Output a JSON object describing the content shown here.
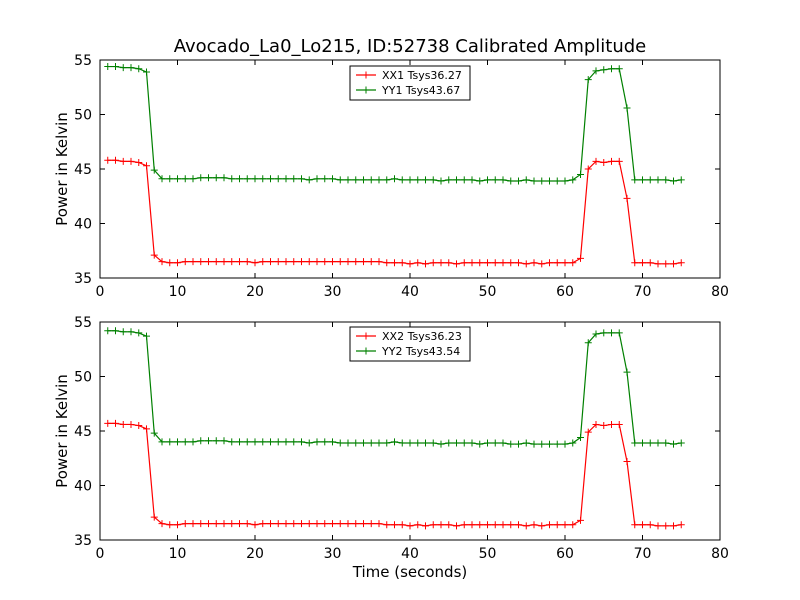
{
  "figure": {
    "title": "Avocado_La0_Lo215, ID:52738 Calibrated Amplitude"
  },
  "chart_data": [
    {
      "type": "line",
      "xlabel": "",
      "ylabel": "Power in Kelvin",
      "xlim": [
        0,
        80
      ],
      "ylim": [
        35,
        55
      ],
      "xticks": [
        0,
        10,
        20,
        30,
        40,
        50,
        60,
        70,
        80
      ],
      "yticks": [
        35,
        40,
        45,
        50,
        55
      ],
      "grid": false,
      "legend": "top-center",
      "series": [
        {
          "name": "XX1 Tsys36.27",
          "color": "#ff0000",
          "x": [
            1,
            2,
            3,
            4,
            5,
            6,
            7,
            8,
            9,
            10,
            11,
            12,
            13,
            14,
            15,
            16,
            17,
            18,
            19,
            20,
            21,
            22,
            23,
            24,
            25,
            26,
            27,
            28,
            29,
            30,
            31,
            32,
            33,
            34,
            35,
            36,
            37,
            38,
            39,
            40,
            41,
            42,
            43,
            44,
            45,
            46,
            47,
            48,
            49,
            50,
            51,
            52,
            53,
            54,
            55,
            56,
            57,
            58,
            59,
            60,
            61,
            62,
            63,
            64,
            65,
            66,
            67,
            68,
            69,
            70,
            71,
            72,
            73,
            74,
            75
          ],
          "values": [
            45.8,
            45.8,
            45.7,
            45.7,
            45.6,
            45.3,
            37.1,
            36.5,
            36.4,
            36.4,
            36.5,
            36.5,
            36.5,
            36.5,
            36.5,
            36.5,
            36.5,
            36.5,
            36.5,
            36.4,
            36.5,
            36.5,
            36.5,
            36.5,
            36.5,
            36.5,
            36.5,
            36.5,
            36.5,
            36.5,
            36.5,
            36.5,
            36.5,
            36.5,
            36.5,
            36.5,
            36.4,
            36.4,
            36.4,
            36.3,
            36.4,
            36.3,
            36.4,
            36.4,
            36.4,
            36.3,
            36.4,
            36.4,
            36.4,
            36.4,
            36.4,
            36.4,
            36.4,
            36.4,
            36.3,
            36.4,
            36.3,
            36.4,
            36.4,
            36.4,
            36.4,
            36.8,
            45.0,
            45.7,
            45.6,
            45.7,
            45.7,
            42.3,
            36.4,
            36.4,
            36.4,
            36.3,
            36.3,
            36.3,
            36.4
          ]
        },
        {
          "name": "YY1 Tsys43.67",
          "color": "#008000",
          "x": [
            1,
            2,
            3,
            4,
            5,
            6,
            7,
            8,
            9,
            10,
            11,
            12,
            13,
            14,
            15,
            16,
            17,
            18,
            19,
            20,
            21,
            22,
            23,
            24,
            25,
            26,
            27,
            28,
            29,
            30,
            31,
            32,
            33,
            34,
            35,
            36,
            37,
            38,
            39,
            40,
            41,
            42,
            43,
            44,
            45,
            46,
            47,
            48,
            49,
            50,
            51,
            52,
            53,
            54,
            55,
            56,
            57,
            58,
            59,
            60,
            61,
            62,
            63,
            64,
            65,
            66,
            67,
            68,
            69,
            70,
            71,
            72,
            73,
            74,
            75
          ],
          "values": [
            54.4,
            54.4,
            54.3,
            54.3,
            54.2,
            53.9,
            44.9,
            44.1,
            44.1,
            44.1,
            44.1,
            44.1,
            44.2,
            44.2,
            44.2,
            44.2,
            44.1,
            44.1,
            44.1,
            44.1,
            44.1,
            44.1,
            44.1,
            44.1,
            44.1,
            44.1,
            44.0,
            44.1,
            44.1,
            44.1,
            44.0,
            44.0,
            44.0,
            44.0,
            44.0,
            44.0,
            44.0,
            44.1,
            44.0,
            44.0,
            44.0,
            44.0,
            44.0,
            43.9,
            44.0,
            44.0,
            44.0,
            44.0,
            43.9,
            44.0,
            44.0,
            44.0,
            43.9,
            43.9,
            44.0,
            43.9,
            43.9,
            43.9,
            43.9,
            43.9,
            44.0,
            44.5,
            53.2,
            54.0,
            54.1,
            54.2,
            54.2,
            50.6,
            44.0,
            44.0,
            44.0,
            44.0,
            44.0,
            43.9,
            44.0
          ]
        }
      ]
    },
    {
      "type": "line",
      "xlabel": "Time (seconds)",
      "ylabel": "Power in Kelvin",
      "xlim": [
        0,
        80
      ],
      "ylim": [
        35,
        55
      ],
      "xticks": [
        0,
        10,
        20,
        30,
        40,
        50,
        60,
        70,
        80
      ],
      "yticks": [
        35,
        40,
        45,
        50,
        55
      ],
      "grid": false,
      "legend": "top-center",
      "series": [
        {
          "name": "XX2 Tsys36.23",
          "color": "#ff0000",
          "x": [
            1,
            2,
            3,
            4,
            5,
            6,
            7,
            8,
            9,
            10,
            11,
            12,
            13,
            14,
            15,
            16,
            17,
            18,
            19,
            20,
            21,
            22,
            23,
            24,
            25,
            26,
            27,
            28,
            29,
            30,
            31,
            32,
            33,
            34,
            35,
            36,
            37,
            38,
            39,
            40,
            41,
            42,
            43,
            44,
            45,
            46,
            47,
            48,
            49,
            50,
            51,
            52,
            53,
            54,
            55,
            56,
            57,
            58,
            59,
            60,
            61,
            62,
            63,
            64,
            65,
            66,
            67,
            68,
            69,
            70,
            71,
            72,
            73,
            74,
            75
          ],
          "values": [
            45.7,
            45.7,
            45.6,
            45.6,
            45.5,
            45.2,
            37.1,
            36.5,
            36.4,
            36.4,
            36.5,
            36.5,
            36.5,
            36.5,
            36.5,
            36.5,
            36.5,
            36.5,
            36.5,
            36.4,
            36.5,
            36.5,
            36.5,
            36.5,
            36.5,
            36.5,
            36.5,
            36.5,
            36.5,
            36.5,
            36.5,
            36.5,
            36.5,
            36.5,
            36.5,
            36.5,
            36.4,
            36.4,
            36.4,
            36.3,
            36.4,
            36.3,
            36.4,
            36.4,
            36.4,
            36.3,
            36.4,
            36.4,
            36.4,
            36.4,
            36.4,
            36.4,
            36.4,
            36.4,
            36.3,
            36.4,
            36.3,
            36.4,
            36.4,
            36.4,
            36.4,
            36.8,
            44.9,
            45.6,
            45.5,
            45.6,
            45.6,
            42.2,
            36.4,
            36.4,
            36.4,
            36.3,
            36.3,
            36.3,
            36.4
          ]
        },
        {
          "name": "YY2 Tsys43.54",
          "color": "#008000",
          "x": [
            1,
            2,
            3,
            4,
            5,
            6,
            7,
            8,
            9,
            10,
            11,
            12,
            13,
            14,
            15,
            16,
            17,
            18,
            19,
            20,
            21,
            22,
            23,
            24,
            25,
            26,
            27,
            28,
            29,
            30,
            31,
            32,
            33,
            34,
            35,
            36,
            37,
            38,
            39,
            40,
            41,
            42,
            43,
            44,
            45,
            46,
            47,
            48,
            49,
            50,
            51,
            52,
            53,
            54,
            55,
            56,
            57,
            58,
            59,
            60,
            61,
            62,
            63,
            64,
            65,
            66,
            67,
            68,
            69,
            70,
            71,
            72,
            73,
            74,
            75
          ],
          "values": [
            54.2,
            54.2,
            54.1,
            54.1,
            54.0,
            53.7,
            44.8,
            44.0,
            44.0,
            44.0,
            44.0,
            44.0,
            44.1,
            44.1,
            44.1,
            44.1,
            44.0,
            44.0,
            44.0,
            44.0,
            44.0,
            44.0,
            44.0,
            44.0,
            44.0,
            44.0,
            43.9,
            44.0,
            44.0,
            44.0,
            43.9,
            43.9,
            43.9,
            43.9,
            43.9,
            43.9,
            43.9,
            44.0,
            43.9,
            43.9,
            43.9,
            43.9,
            43.9,
            43.8,
            43.9,
            43.9,
            43.9,
            43.9,
            43.8,
            43.9,
            43.9,
            43.9,
            43.8,
            43.8,
            43.9,
            43.8,
            43.8,
            43.8,
            43.8,
            43.8,
            43.9,
            44.4,
            53.1,
            53.9,
            54.0,
            54.0,
            54.0,
            50.4,
            43.9,
            43.9,
            43.9,
            43.9,
            43.9,
            43.8,
            43.9
          ]
        }
      ]
    }
  ]
}
